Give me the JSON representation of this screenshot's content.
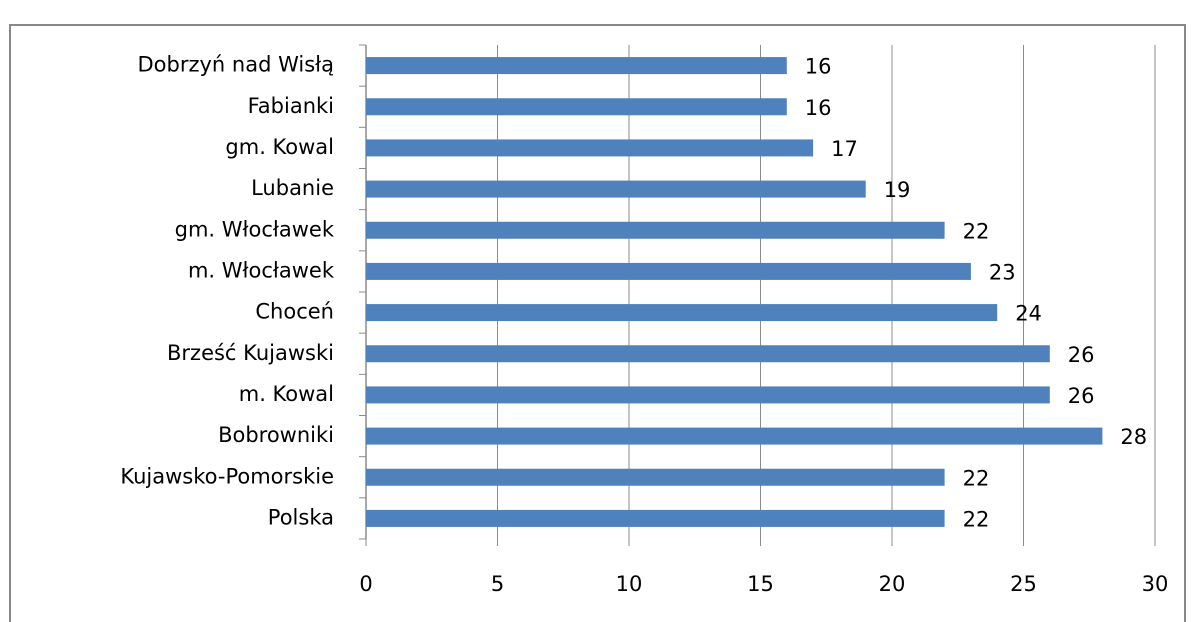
{
  "chart_data": {
    "type": "bar",
    "orientation": "horizontal",
    "categories": [
      "Dobrzyń nad Wisłą",
      "Fabianki",
      "gm. Kowal",
      "Lubanie",
      "gm. Włocławek",
      "m. Włocławek",
      "Choceń",
      "Brześć Kujawski",
      "m. Kowal",
      "Bobrowniki",
      "Kujawsko-Pomorskie",
      "Polska"
    ],
    "values": [
      16,
      16,
      17,
      19,
      22,
      23,
      24,
      26,
      26,
      28,
      22,
      22
    ],
    "color": "#4f81bd",
    "xlim": [
      0,
      30
    ],
    "xticks": [
      0,
      5,
      10,
      15,
      20,
      25,
      30
    ],
    "grid": true
  }
}
